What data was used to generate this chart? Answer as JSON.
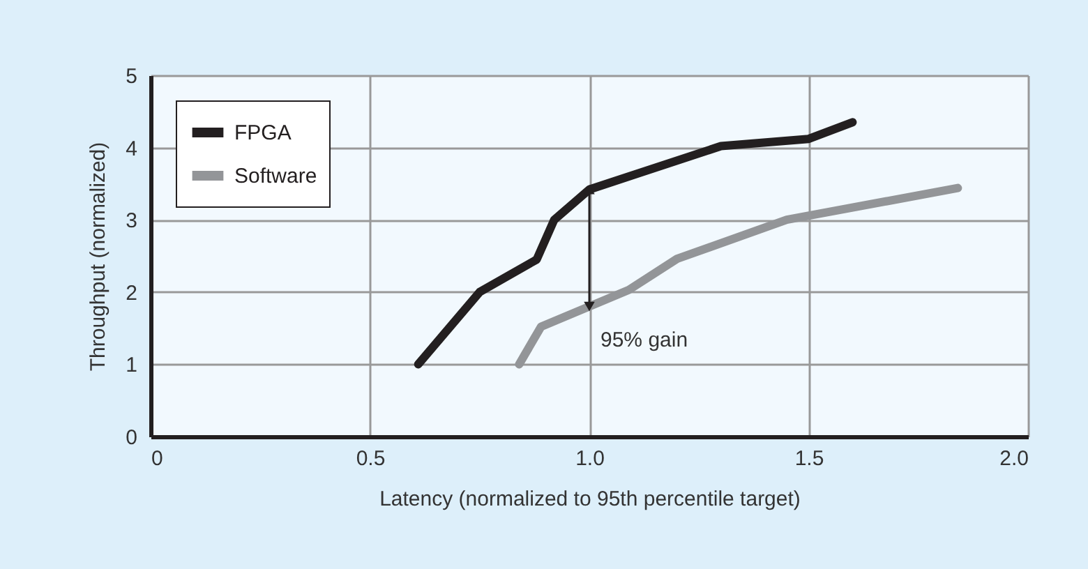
{
  "chart_data": {
    "type": "line",
    "xlabel": "Latency (normalized to 95th percentile target)",
    "ylabel": "Throughput (normalized)",
    "series": [
      {
        "name": "FPGA",
        "color": "#231f20",
        "x": [
          0.61,
          0.75,
          0.88,
          0.92,
          1.0,
          1.3,
          1.5,
          1.6
        ],
        "values": [
          1.0,
          2.0,
          2.45,
          3.0,
          3.42,
          4.02,
          4.12,
          4.35
        ]
      },
      {
        "name": "Software",
        "color": "#939598",
        "x": [
          0.84,
          0.89,
          1.09,
          1.2,
          1.45,
          1.84
        ],
        "values": [
          1.0,
          1.52,
          2.03,
          2.46,
          3.0,
          3.44
        ]
      }
    ],
    "xlim": [
      0,
      2.0
    ],
    "xticks": [
      0,
      0.5,
      {
        "value": 1.0,
        "label": "1.0"
      },
      1.5,
      {
        "value": 2.0,
        "label": "2.0"
      }
    ],
    "ylim": [
      0,
      5
    ],
    "yticks": [
      0,
      1,
      2,
      3,
      4,
      5
    ],
    "annotations": [
      {
        "text": "95% gain",
        "x": 1.0,
        "y": 3.42
      }
    ],
    "grid": true,
    "legend": "top left",
    "marker": "none",
    "line_style": "solid"
  }
}
